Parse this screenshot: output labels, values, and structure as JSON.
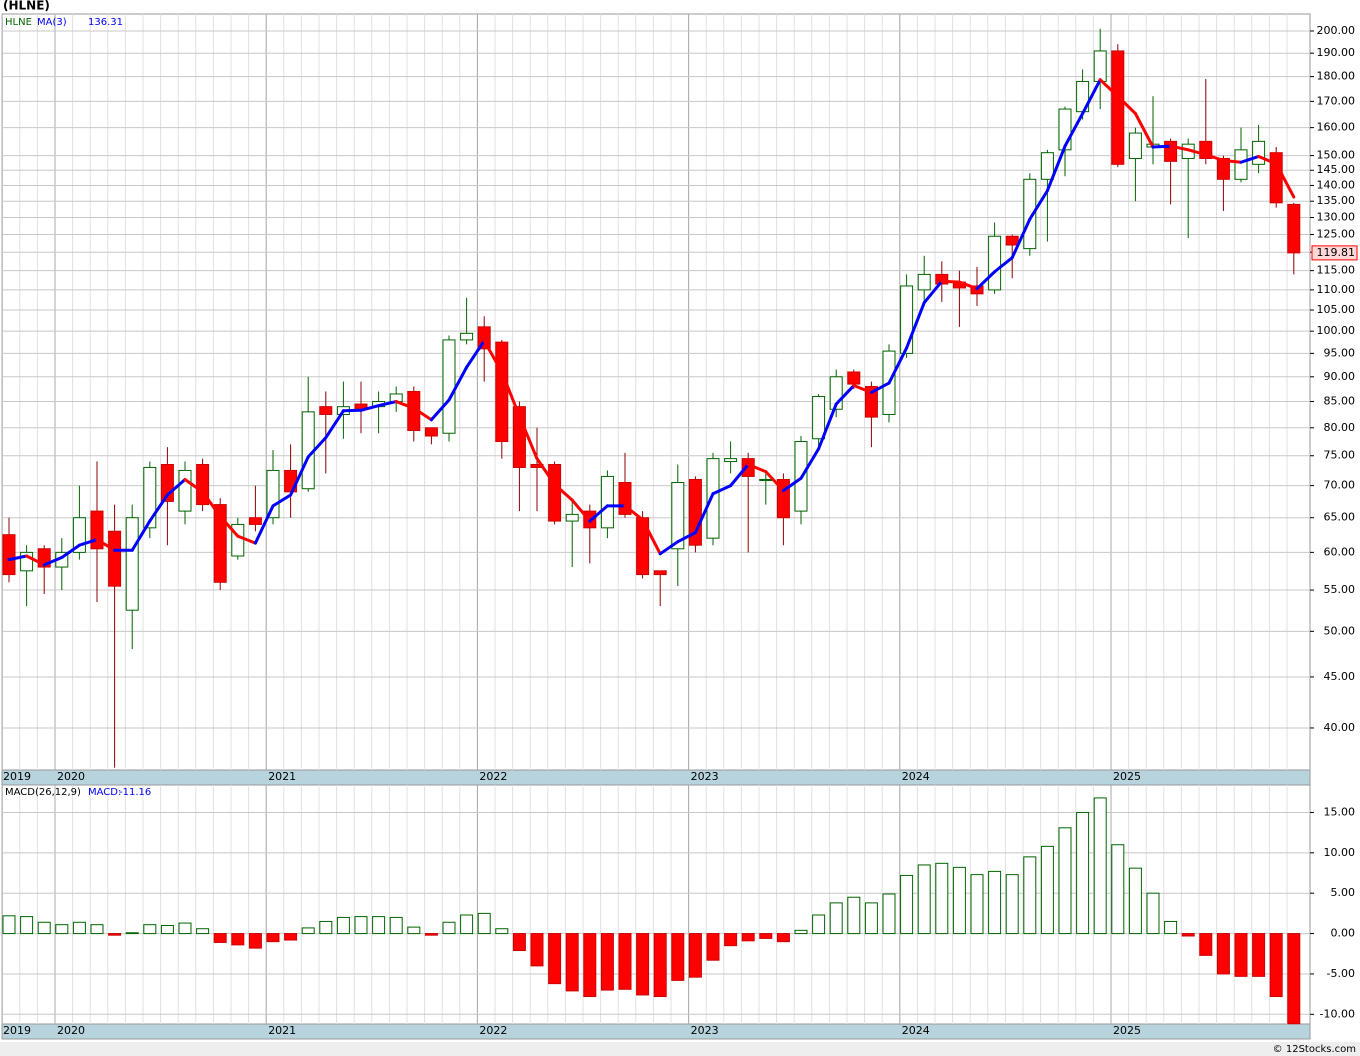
{
  "title": "(HLNE)",
  "watermark": "© 12Stocks.com",
  "chart_data": [
    {
      "type": "candlestick",
      "name": "HLNE",
      "log": true,
      "grid": true,
      "up_color": "#006400",
      "down_color": "#ff0000",
      "categories": [
        "2019",
        null,
        null,
        "2020",
        null,
        null,
        null,
        null,
        null,
        null,
        null,
        null,
        null,
        null,
        null,
        "2021",
        null,
        null,
        null,
        null,
        null,
        null,
        null,
        null,
        null,
        null,
        null,
        "2022",
        null,
        null,
        null,
        null,
        null,
        null,
        null,
        null,
        null,
        null,
        null,
        "2023",
        null,
        null,
        null,
        null,
        null,
        null,
        null,
        null,
        null,
        null,
        null,
        "2024",
        null,
        null,
        null,
        null,
        null,
        null,
        null,
        null,
        null,
        null,
        null,
        "2025",
        null,
        null,
        null,
        null,
        null,
        null,
        null,
        null,
        null,
        null
      ],
      "open": [
        62.5,
        57.5,
        60.5,
        58,
        60,
        66,
        63,
        52.5,
        63.5,
        73.5,
        66,
        73.5,
        67,
        59.5,
        65,
        65,
        72.5,
        69.5,
        84,
        82.5,
        84.5,
        84,
        85,
        87,
        80,
        79,
        98,
        101,
        97.5,
        84,
        73.5,
        73.5,
        64.5,
        66,
        63.5,
        70.5,
        65,
        57.5,
        60.5,
        71,
        62,
        74,
        74.5,
        71,
        71,
        66,
        78,
        83.5,
        91,
        88,
        82.5,
        95,
        110,
        114,
        112,
        111,
        110,
        124.5,
        121,
        142,
        152,
        166,
        178,
        191,
        149,
        153,
        155,
        149,
        155,
        149,
        142,
        147,
        151,
        134
      ],
      "high": [
        65,
        61,
        61,
        62,
        70,
        74,
        67,
        67,
        74,
        76.5,
        74,
        74.5,
        68,
        65,
        70,
        76,
        77,
        90,
        87,
        89,
        89,
        87,
        88,
        88,
        80,
        99,
        108,
        103.5,
        98,
        85,
        80,
        74,
        67.5,
        67,
        72.5,
        75.5,
        66,
        57.5,
        73.5,
        71.5,
        75.5,
        77.5,
        75.5,
        72,
        72,
        78.5,
        86.5,
        91.5,
        91.5,
        89,
        97,
        114,
        119,
        117.5,
        115,
        116,
        128.5,
        125,
        144,
        152,
        168,
        183,
        201,
        194,
        160,
        172,
        156,
        156,
        179,
        150,
        160,
        161,
        153,
        134.5
      ],
      "low": [
        56,
        53,
        54.5,
        55,
        59,
        53.5,
        36.5,
        48,
        62,
        61,
        64,
        66,
        55,
        59,
        63,
        64,
        65,
        69,
        72,
        78,
        79,
        79,
        83,
        77.5,
        77,
        77.5,
        97,
        89,
        74.5,
        66,
        66,
        64,
        58,
        58.5,
        62,
        65,
        56.5,
        53,
        55.5,
        60,
        61,
        72,
        60,
        67,
        61,
        64,
        76.5,
        82,
        87.5,
        76.5,
        81,
        94,
        106,
        107,
        101,
        106,
        109,
        113,
        119,
        123,
        143,
        163,
        167,
        146,
        135,
        147,
        134,
        124,
        147,
        132,
        141,
        144,
        133,
        114
      ],
      "close": [
        57,
        60,
        58,
        60,
        65,
        60.5,
        55.5,
        65,
        73,
        67.5,
        72.5,
        67,
        56,
        64,
        64,
        72.5,
        69,
        83,
        82.5,
        84,
        83.5,
        85,
        86.5,
        79.5,
        78.5,
        98,
        99.5,
        96,
        77.5,
        73,
        73,
        64.5,
        65.5,
        63.5,
        71.5,
        65.5,
        57,
        57,
        70.5,
        61,
        74.5,
        74.5,
        71.5,
        71,
        65,
        77.5,
        86,
        90,
        88.5,
        82,
        95.5,
        111,
        114,
        111.5,
        110.5,
        109,
        124.5,
        122,
        142,
        151,
        167,
        178,
        191,
        147,
        158,
        154,
        148,
        154,
        149,
        142,
        152,
        155,
        134.5,
        119.81
      ],
      "overlay": {
        "name": "MA(3)",
        "color": "#0000ff",
        "down_color": "#ff0000",
        "values": [
          59,
          59.5,
          58.3,
          59.3,
          61,
          61.8,
          60.3,
          60.3,
          64.5,
          68.5,
          71,
          69,
          65.2,
          62.3,
          61.3,
          66.8,
          68.5,
          74.8,
          78.2,
          83.2,
          83.3,
          84.2,
          85,
          83.7,
          81.5,
          85.3,
          92,
          97.8,
          91,
          82.2,
          74.5,
          70.2,
          67.7,
          64.5,
          66.8,
          66.8,
          64.7,
          59.8,
          61.5,
          62.8,
          68.7,
          70,
          73.5,
          72.3,
          69.2,
          71.2,
          76.2,
          84.5,
          88.2,
          86.8,
          88.7,
          96.2,
          106.8,
          112.2,
          112,
          110.3,
          114.7,
          118.5,
          129.5,
          138.3,
          153.3,
          165.3,
          178.7,
          172,
          165.3,
          153,
          153.3,
          152,
          150.3,
          148.3,
          147.7,
          149.7,
          147.2,
          136.31
        ]
      },
      "ylim": [
        36.3,
        208
      ],
      "yticks": [
        {
          "value": 200,
          "label": "200.00"
        },
        {
          "value": 190,
          "label": "190.00"
        },
        {
          "value": 180,
          "label": "180.00"
        },
        {
          "value": 170,
          "label": "170.00"
        },
        {
          "value": 160,
          "label": "160.00"
        },
        {
          "value": 150,
          "label": "150.00"
        },
        {
          "value": 145,
          "label": "145.00"
        },
        {
          "value": 140,
          "label": "140.00"
        },
        {
          "value": 135,
          "label": "135.00"
        },
        {
          "value": 130,
          "label": "130.00"
        },
        {
          "value": 125,
          "label": "125.00"
        },
        {
          "value": 120,
          "label": "120.00"
        },
        {
          "value": 115,
          "label": "115.00"
        },
        {
          "value": 110,
          "label": "110.00"
        },
        {
          "value": 105,
          "label": "105.00"
        },
        {
          "value": 100,
          "label": "100.00"
        },
        {
          "value": 95,
          "label": "95.00"
        },
        {
          "value": 90,
          "label": "90.00"
        },
        {
          "value": 85,
          "label": "85.00"
        },
        {
          "value": 80,
          "label": "80.00"
        },
        {
          "value": 75,
          "label": "75.00"
        },
        {
          "value": 70,
          "label": "70.00"
        },
        {
          "value": 65,
          "label": "65.00"
        },
        {
          "value": 60,
          "label": "60.00"
        },
        {
          "value": 55,
          "label": "55.00"
        },
        {
          "value": 50,
          "label": "50.00"
        },
        {
          "value": 45,
          "label": "45.00"
        },
        {
          "value": 40,
          "label": "40.00"
        }
      ]
    },
    {
      "type": "bar",
      "title": "MACD(26,12,9)",
      "grid": true,
      "up_color": "#006400",
      "down_color": "#ff0000",
      "categories": [
        "2019",
        null,
        null,
        "2020",
        null,
        null,
        null,
        null,
        null,
        null,
        null,
        null,
        null,
        null,
        null,
        "2021",
        null,
        null,
        null,
        null,
        null,
        null,
        null,
        null,
        null,
        null,
        null,
        "2022",
        null,
        null,
        null,
        null,
        null,
        null,
        null,
        null,
        null,
        null,
        null,
        "2023",
        null,
        null,
        null,
        null,
        null,
        null,
        null,
        null,
        null,
        null,
        null,
        "2024",
        null,
        null,
        null,
        null,
        null,
        null,
        null,
        null,
        null,
        null,
        null,
        "2025",
        null,
        null,
        null,
        null,
        null,
        null,
        null,
        null,
        null,
        null
      ],
      "series": [
        {
          "name": "MACD:",
          "color": "#0000ff",
          "values": [
            2.2,
            2.1,
            1.4,
            1.1,
            1.4,
            1.1,
            -0.2,
            0.1,
            1.1,
            1.0,
            1.3,
            0.6,
            -1.1,
            -1.4,
            -1.8,
            -1.0,
            -0.8,
            0.7,
            1.5,
            2.0,
            2.1,
            2.1,
            2.0,
            0.8,
            -0.2,
            1.4,
            2.3,
            2.5,
            0.6,
            -2.1,
            -4.0,
            -6.2,
            -7.1,
            -7.8,
            -7.0,
            -6.9,
            -7.6,
            -7.8,
            -5.8,
            -5.4,
            -3.3,
            -1.5,
            -0.9,
            -0.6,
            -1.0,
            0.4,
            2.3,
            3.8,
            4.5,
            3.8,
            4.9,
            7.2,
            8.5,
            8.7,
            8.2,
            7.3,
            7.7,
            7.3,
            9.5,
            10.8,
            13.1,
            15.0,
            16.8,
            11.0,
            8.1,
            5.0,
            1.5,
            -0.3,
            -2.7,
            -5.0,
            -5.3,
            -5.3,
            -7.8,
            -11.16
          ]
        }
      ],
      "ylim": [
        -11.2,
        18.4
      ],
      "yticks": [
        {
          "value": 15,
          "label": "15.00"
        },
        {
          "value": 10,
          "label": "10.00"
        },
        {
          "value": 5,
          "label": "5.00"
        },
        {
          "value": 0,
          "label": "0.00"
        },
        {
          "value": -5,
          "label": "-5.00"
        },
        {
          "value": -10,
          "label": "-10.00"
        }
      ]
    }
  ]
}
